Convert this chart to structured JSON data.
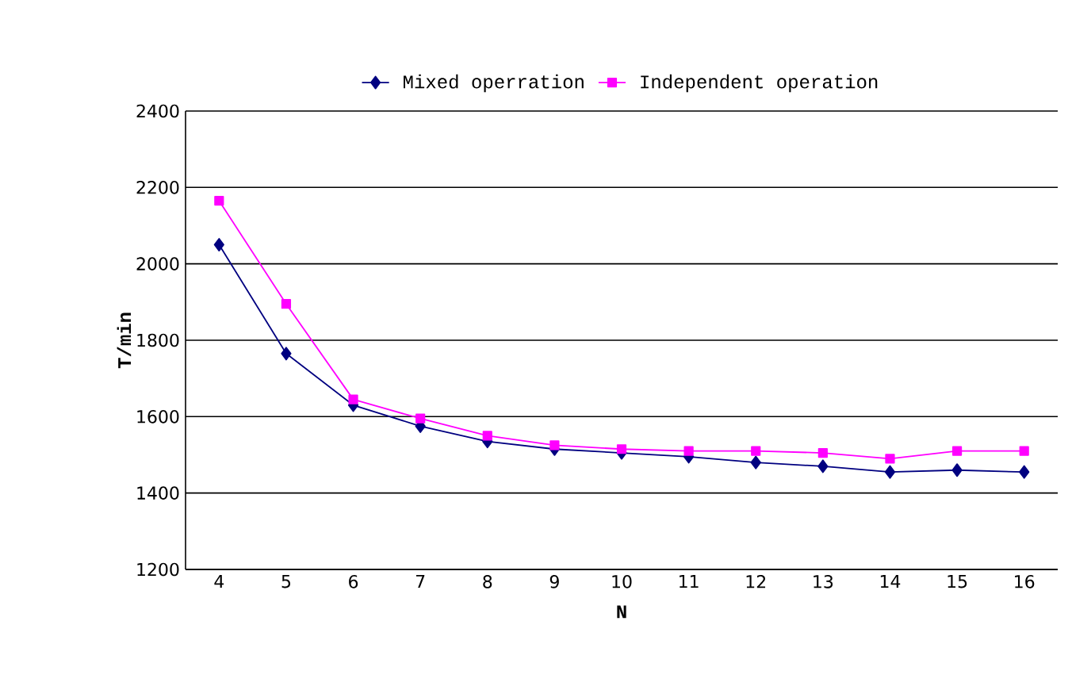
{
  "chart_data": {
    "type": "line",
    "xlabel": "N",
    "ylabel": "T/min",
    "categories": [
      "4",
      "5",
      "6",
      "7",
      "8",
      "9",
      "10",
      "11",
      "12",
      "13",
      "14",
      "15",
      "16"
    ],
    "series": [
      {
        "name": "Mixed operration",
        "color": "#000080",
        "marker": "diamond",
        "values": [
          2050,
          1765,
          1630,
          1575,
          1535,
          1515,
          1505,
          1495,
          1480,
          1470,
          1455,
          1460,
          1455
        ]
      },
      {
        "name": "Independent operation",
        "color": "#ff00ff",
        "marker": "square",
        "values": [
          2165,
          1895,
          1645,
          1595,
          1550,
          1525,
          1515,
          1510,
          1510,
          1505,
          1490,
          1510,
          1510
        ]
      }
    ],
    "ylim": [
      1200,
      2400
    ],
    "yticks": [
      1200,
      1400,
      1600,
      1800,
      2000,
      2200,
      2400
    ],
    "grid": "y",
    "legend": "top"
  }
}
